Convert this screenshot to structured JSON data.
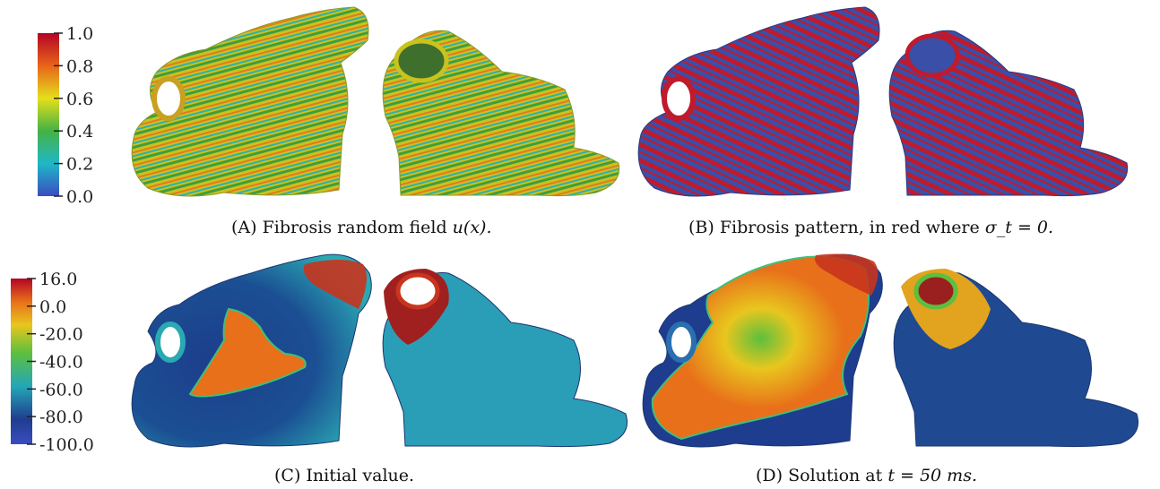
{
  "colorbars": [
    {
      "name": "fibrosis-field",
      "ticks": [
        "1.0",
        "0.8",
        "0.6",
        "0.4",
        "0.2",
        "0.0"
      ]
    },
    {
      "name": "potential",
      "ticks": [
        "16.0",
        "0.0",
        "-20.0",
        "-40.0",
        "-60.0",
        "-80.0",
        "-100.0"
      ]
    }
  ],
  "panels": [
    {
      "letter": "(A)",
      "text": "Fibrosis random field",
      "math": "u(x)."
    },
    {
      "letter": "(B)",
      "text": "Fibrosis pattern, in red where",
      "math": "σ_t = 0."
    },
    {
      "letter": "(C)",
      "text": "Initial value.",
      "math": ""
    },
    {
      "letter": "(D)",
      "text": "Solution at",
      "math": "t = 50 ms."
    }
  ],
  "colors": {
    "blue": "#3a4fa8",
    "red": "#c01a2c",
    "green": "#3fa33a",
    "yellow": "#e8d21c",
    "orange": "#e8761a",
    "navy": "#1e3f8a",
    "cyan": "#36b7c1"
  }
}
